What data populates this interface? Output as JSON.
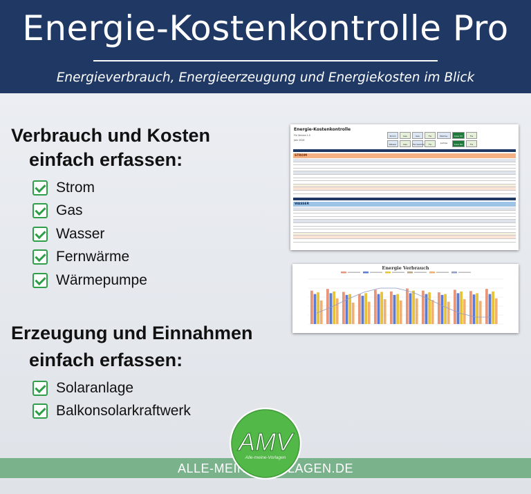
{
  "header": {
    "title": "Energie-Kostenkontrolle Pro",
    "subtitle": "Energieverbrauch, Energieerzeugung und Energiekosten im Blick"
  },
  "section1": {
    "title_line1": "Verbrauch und Kosten",
    "title_line2": "einfach erfassen:",
    "items": [
      "Strom",
      "Gas",
      "Wasser",
      "Fernwärme",
      "Wärmepumpe"
    ]
  },
  "section2": {
    "title_line1": "Erzeugung und Einnahmen",
    "title_line2": "einfach erfassen:",
    "items": [
      "Solaranlage",
      "Balkonsolarkraftwerk"
    ]
  },
  "sheet": {
    "title": "Energie-Kostenkontrolle",
    "meta1": "Für Version 1.0",
    "meta2": "Jahr 2026",
    "section_a": "STROM",
    "section_b": "WASSER",
    "nav_labels": [
      "Strom",
      "Gas",
      "Gas",
      "Fw",
      "Wärme-pumpe",
      "Solar PV",
      "Fw",
      "Wasser",
      "Gas",
      "Fernwärme",
      "Fw",
      "Solar BK",
      "Fw"
    ]
  },
  "chart": {
    "title": "Energie Verbrauch"
  },
  "footer": {
    "url": "ALLE-MEINE-VORLAGEN.DE"
  },
  "logo": {
    "text": "AMV",
    "subtext": "Alle-meine-Vorlagen"
  },
  "colors": {
    "header_bg": "#1f3864",
    "check_green": "#2e9e48",
    "footer_band": "#7ab28c",
    "logo_green": "#52b848"
  }
}
